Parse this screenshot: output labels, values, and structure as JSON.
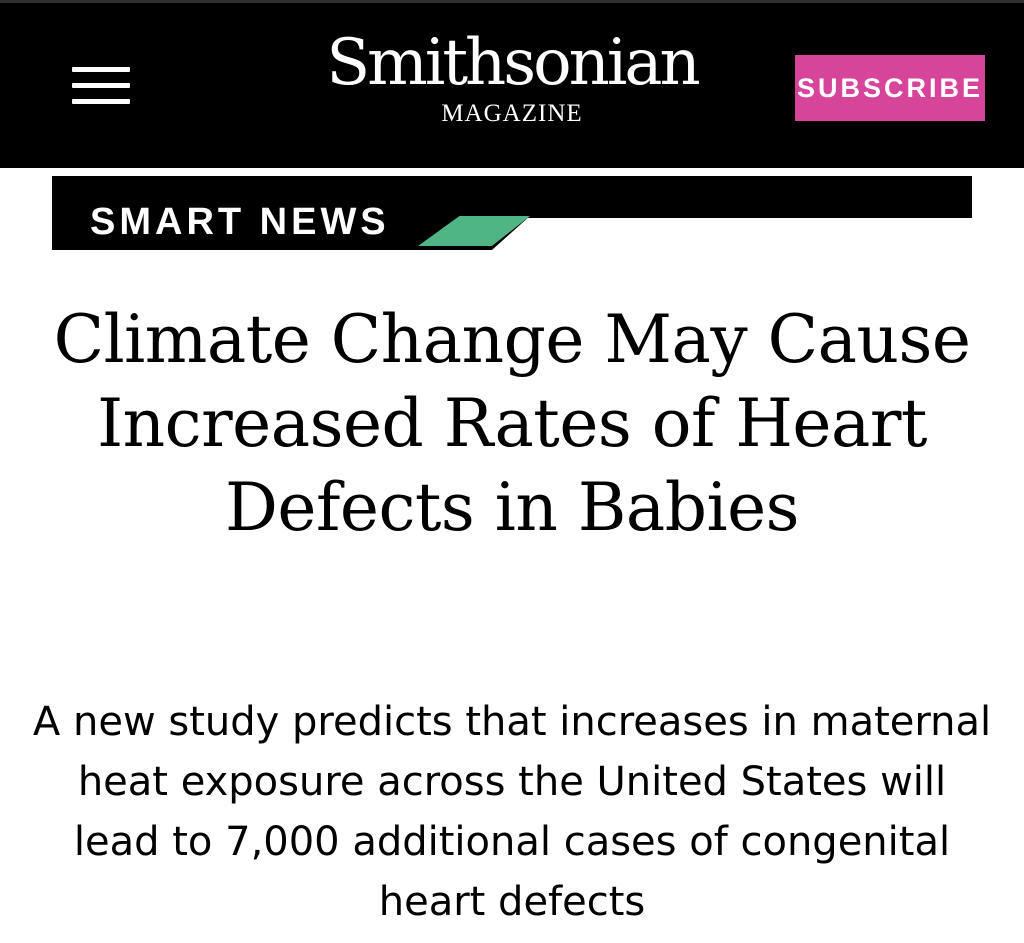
{
  "header": {
    "menu_icon": "hamburger-menu-icon",
    "logo_word": "Smithsonian",
    "logo_sub": "MAGAZINE",
    "subscribe_label": "SUBSCRIBE",
    "subscribe_color": "#d7459b"
  },
  "section": {
    "label": "SMART NEWS",
    "accent_color": "#4fb584"
  },
  "article": {
    "headline": "Climate Change May Cause Increased Rates of Heart Defects in Babies",
    "dek": "A new study predicts that increases in maternal heat exposure across the United States will lead to 7,000 additional cases of congenital heart defects"
  }
}
